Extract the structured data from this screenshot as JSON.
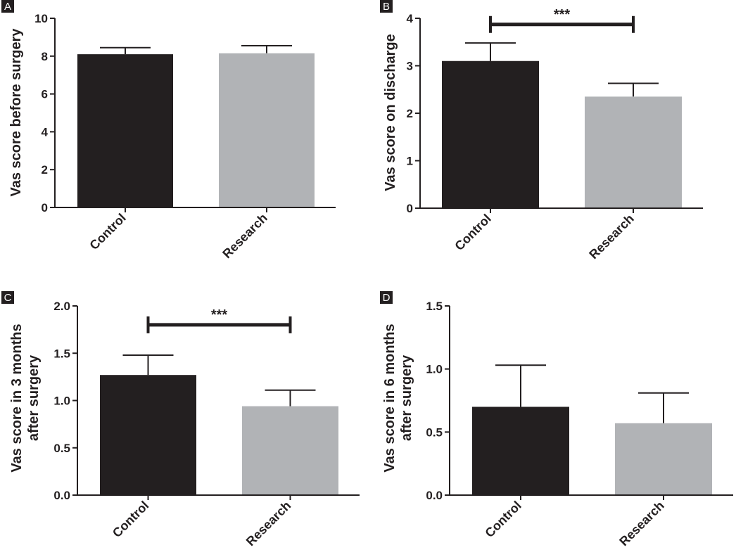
{
  "chart_data": [
    {
      "panel": "A",
      "type": "bar",
      "categories": [
        "Control",
        "Research"
      ],
      "values": [
        8.1,
        8.15
      ],
      "errors": [
        0.35,
        0.4
      ],
      "colors": [
        "#231f20",
        "#b1b3b6"
      ],
      "ylabel": "Vas score before surgery",
      "ylim": [
        0,
        10
      ],
      "yticks": [
        "0",
        "2",
        "4",
        "6",
        "8",
        "10"
      ],
      "significance": null
    },
    {
      "panel": "B",
      "type": "bar",
      "categories": [
        "Control",
        "Research"
      ],
      "values": [
        3.1,
        2.35
      ],
      "errors": [
        0.38,
        0.28
      ],
      "colors": [
        "#231f20",
        "#b1b3b6"
      ],
      "ylabel": "Vas score on discharge",
      "ylim": [
        0,
        4
      ],
      "yticks": [
        "0",
        "1",
        "2",
        "3",
        "4"
      ],
      "significance": {
        "label": "***",
        "level": 3.87
      }
    },
    {
      "panel": "C",
      "type": "bar",
      "categories": [
        "Control",
        "Research"
      ],
      "values": [
        1.27,
        0.94
      ],
      "errors": [
        0.21,
        0.17
      ],
      "colors": [
        "#231f20",
        "#b1b3b6"
      ],
      "ylabel_lines": [
        "Vas score in 3 months",
        "after surgery"
      ],
      "ylim": [
        0,
        2
      ],
      "yticks": [
        "0.0",
        "0.5",
        "1.0",
        "1.5",
        "2.0"
      ],
      "significance": {
        "label": "***",
        "level": 1.8
      }
    },
    {
      "panel": "D",
      "type": "bar",
      "categories": [
        "Control",
        "Research"
      ],
      "values": [
        0.7,
        0.57
      ],
      "errors": [
        0.33,
        0.24
      ],
      "colors": [
        "#231f20",
        "#b1b3b6"
      ],
      "ylabel_lines": [
        "Vas score in 6 months",
        "after surgery"
      ],
      "ylim": [
        0,
        1.5
      ],
      "yticks": [
        "0.0",
        "0.5",
        "1.0",
        "1.5"
      ],
      "significance": null
    }
  ]
}
